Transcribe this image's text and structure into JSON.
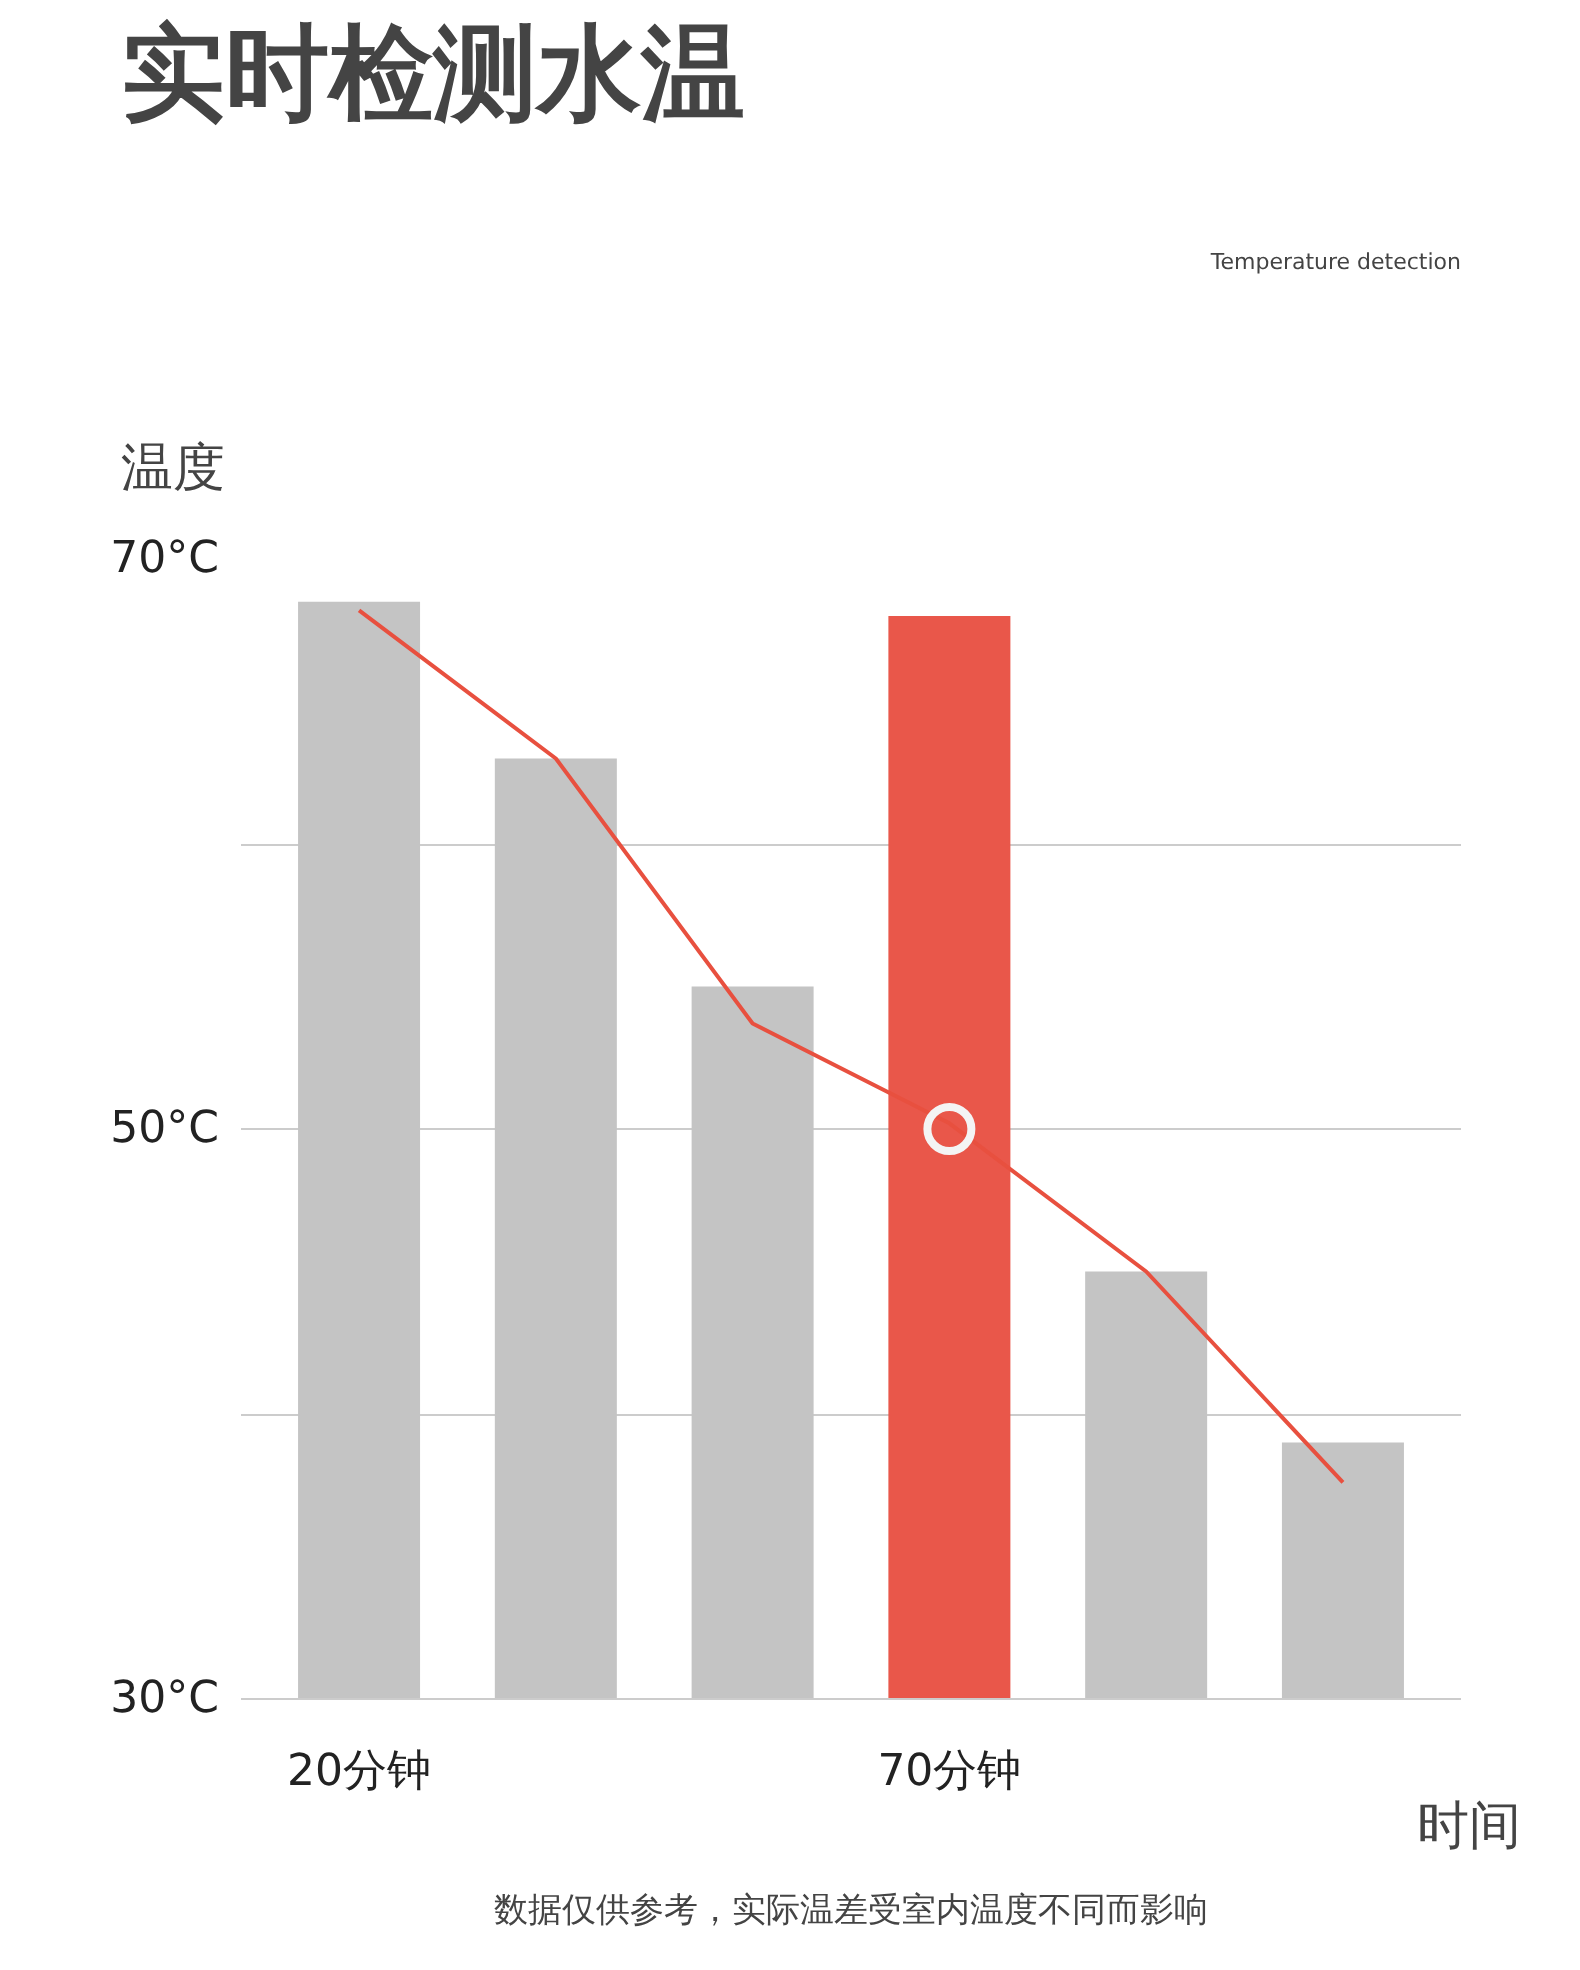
{
  "chart_data": {
    "type": "bar",
    "title": "实时检测水温",
    "subtitle": "Temperature detection",
    "ylabel": "温度",
    "xlabel": "时间",
    "categories": [
      "20分钟",
      null,
      null,
      "70分钟",
      null,
      null
    ],
    "series": [
      {
        "colors": [
          "#c4c4c4",
          "#c4c4c4",
          "#c4c4c4",
          "#e9574a",
          "#c4c4c4",
          "#c4c4c4"
        ],
        "values": [
          68.5,
          63,
          55,
          68,
          45,
          39
        ]
      },
      {
        "type": "line",
        "color": "#e8503f",
        "values": [
          68.2,
          63,
          53.7,
          50.2,
          45,
          37.6
        ]
      },
      {
        "type": "scatter",
        "color": "#f4f4f4",
        "x": [
          "70分钟"
        ],
        "values": [
          50
        ]
      }
    ],
    "ylim": [
      30,
      70
    ],
    "yticks": [
      {
        "value": 30,
        "label": "30°C"
      },
      {
        "value": 40,
        "label": null
      },
      {
        "value": 50,
        "label": "50°C"
      },
      {
        "value": 60,
        "label": null
      },
      {
        "value": 70,
        "label": "70°C"
      }
    ],
    "grid": "y",
    "annotations": [
      "数据仅供参考，实际温差受室内温度不同而影响"
    ]
  }
}
